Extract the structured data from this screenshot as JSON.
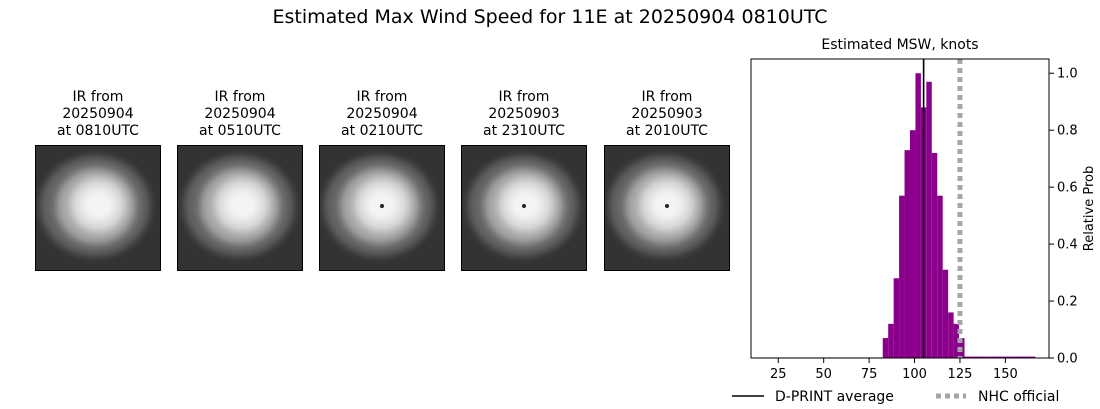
{
  "suptitle": "Estimated Max Wind Speed for 11E at 20250904 0810UTC",
  "panels": [
    {
      "line1": "IR from",
      "line2": "20250904",
      "line3": "at 0810UTC",
      "has_eye": false
    },
    {
      "line1": "IR from",
      "line2": "20250904",
      "line3": "at 0510UTC",
      "has_eye": false
    },
    {
      "line1": "IR from",
      "line2": "20250904",
      "line3": "at 0210UTC",
      "has_eye": true
    },
    {
      "line1": "IR from",
      "line2": "20250903",
      "line3": "at 2310UTC",
      "has_eye": true
    },
    {
      "line1": "IR from",
      "line2": "20250903",
      "line3": "at 2010UTC",
      "has_eye": true
    }
  ],
  "chart_data": {
    "type": "bar",
    "title": "Estimated MSW, knots",
    "xlabel": "",
    "ylabel": "Relative Prob",
    "xlim": [
      10,
      174
    ],
    "ylim": [
      0,
      1.05
    ],
    "xticks": [
      25,
      50,
      75,
      100,
      125,
      150
    ],
    "yticks": [
      0.0,
      0.2,
      0.4,
      0.6,
      0.8,
      1.0
    ],
    "ytick_labels": [
      "0.0",
      "0.2",
      "0.4",
      "0.6",
      "0.8",
      "1.0"
    ],
    "y_axis_side": "right",
    "bin_width": 3,
    "bar_color": "#8b008b",
    "bins": [
      {
        "x": 15,
        "y": 0.002
      },
      {
        "x": 18,
        "y": 0.002
      },
      {
        "x": 21,
        "y": 0.002
      },
      {
        "x": 24,
        "y": 0.002
      },
      {
        "x": 27,
        "y": 0.002
      },
      {
        "x": 30,
        "y": 0.002
      },
      {
        "x": 33,
        "y": 0.002
      },
      {
        "x": 36,
        "y": 0.002
      },
      {
        "x": 39,
        "y": 0.002
      },
      {
        "x": 42,
        "y": 0.002
      },
      {
        "x": 45,
        "y": 0.002
      },
      {
        "x": 48,
        "y": 0.002
      },
      {
        "x": 51,
        "y": 0.002
      },
      {
        "x": 54,
        "y": 0.002
      },
      {
        "x": 57,
        "y": 0.002
      },
      {
        "x": 60,
        "y": 0.002
      },
      {
        "x": 63,
        "y": 0.002
      },
      {
        "x": 66,
        "y": 0.002
      },
      {
        "x": 69,
        "y": 0.002
      },
      {
        "x": 72,
        "y": 0.002
      },
      {
        "x": 75,
        "y": 0.002
      },
      {
        "x": 78,
        "y": 0.002
      },
      {
        "x": 81,
        "y": 0.002
      },
      {
        "x": 84,
        "y": 0.07
      },
      {
        "x": 87,
        "y": 0.12
      },
      {
        "x": 90,
        "y": 0.28
      },
      {
        "x": 93,
        "y": 0.57
      },
      {
        "x": 96,
        "y": 0.73
      },
      {
        "x": 99,
        "y": 0.8
      },
      {
        "x": 102,
        "y": 1.0
      },
      {
        "x": 105,
        "y": 0.88
      },
      {
        "x": 108,
        "y": 0.97
      },
      {
        "x": 111,
        "y": 0.72
      },
      {
        "x": 114,
        "y": 0.57
      },
      {
        "x": 117,
        "y": 0.31
      },
      {
        "x": 120,
        "y": 0.16
      },
      {
        "x": 123,
        "y": 0.12
      },
      {
        "x": 126,
        "y": 0.07
      },
      {
        "x": 129,
        "y": 0.005
      },
      {
        "x": 132,
        "y": 0.005
      },
      {
        "x": 135,
        "y": 0.005
      },
      {
        "x": 138,
        "y": 0.005
      },
      {
        "x": 141,
        "y": 0.005
      },
      {
        "x": 144,
        "y": 0.005
      },
      {
        "x": 147,
        "y": 0.005
      },
      {
        "x": 150,
        "y": 0.005
      },
      {
        "x": 153,
        "y": 0.005
      },
      {
        "x": 156,
        "y": 0.005
      },
      {
        "x": 159,
        "y": 0.005
      },
      {
        "x": 162,
        "y": 0.005
      },
      {
        "x": 165,
        "y": 0.005
      }
    ],
    "vlines": [
      {
        "name": "D-PRINT average",
        "x": 105,
        "style": "solid",
        "color": "#000000"
      },
      {
        "name": "NHC official",
        "x": 125,
        "style": "dotted",
        "color": "#a6a6a6"
      }
    ],
    "legend": {
      "placement": "below",
      "entries": [
        "D-PRINT average",
        "NHC official"
      ]
    },
    "grid": false
  }
}
